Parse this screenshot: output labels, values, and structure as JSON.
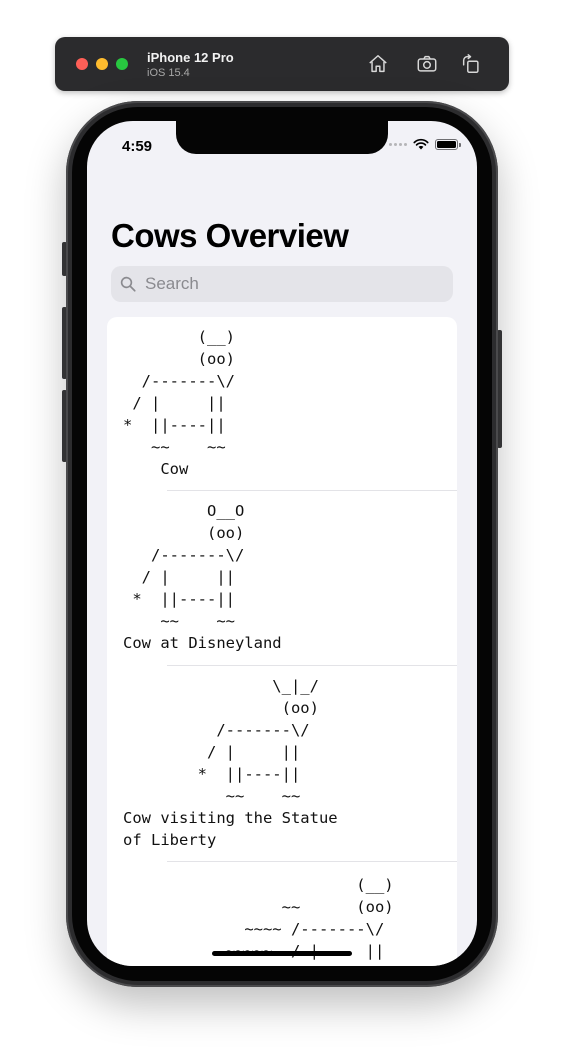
{
  "simulator": {
    "device_name": "iPhone 12 Pro",
    "os_version": "iOS 15.4",
    "buttons": {
      "home": "home-icon",
      "screenshot": "camera-icon",
      "rotate": "rotate-icon"
    }
  },
  "status_bar": {
    "time": "4:59"
  },
  "nav": {
    "title": "Cows Overview"
  },
  "search": {
    "placeholder": "Search",
    "value": ""
  },
  "cows": [
    {
      "art": "        (__)\n        (oo)\n  /-------\\/\n / |     ||\n*  ||----||\n   ~~    ~~",
      "name": "    Cow"
    },
    {
      "art": "         O__O\n         (oo)\n   /-------\\/\n  / |     ||\n *  ||----||\n    ~~    ~~",
      "name": "Cow at Disneyland"
    },
    {
      "art": "                \\_|_/\n                 (oo)\n          /-------\\/\n         / |     ||\n        *  ||----||\n           ~~    ~~",
      "name": "Cow visiting the Statue\nof Liberty"
    },
    {
      "art": "                         (__)\n                 ~~      (oo)\n             ~~~~ /-------\\/\n           ~~~~~  / |     ||",
      "name": ""
    }
  ]
}
